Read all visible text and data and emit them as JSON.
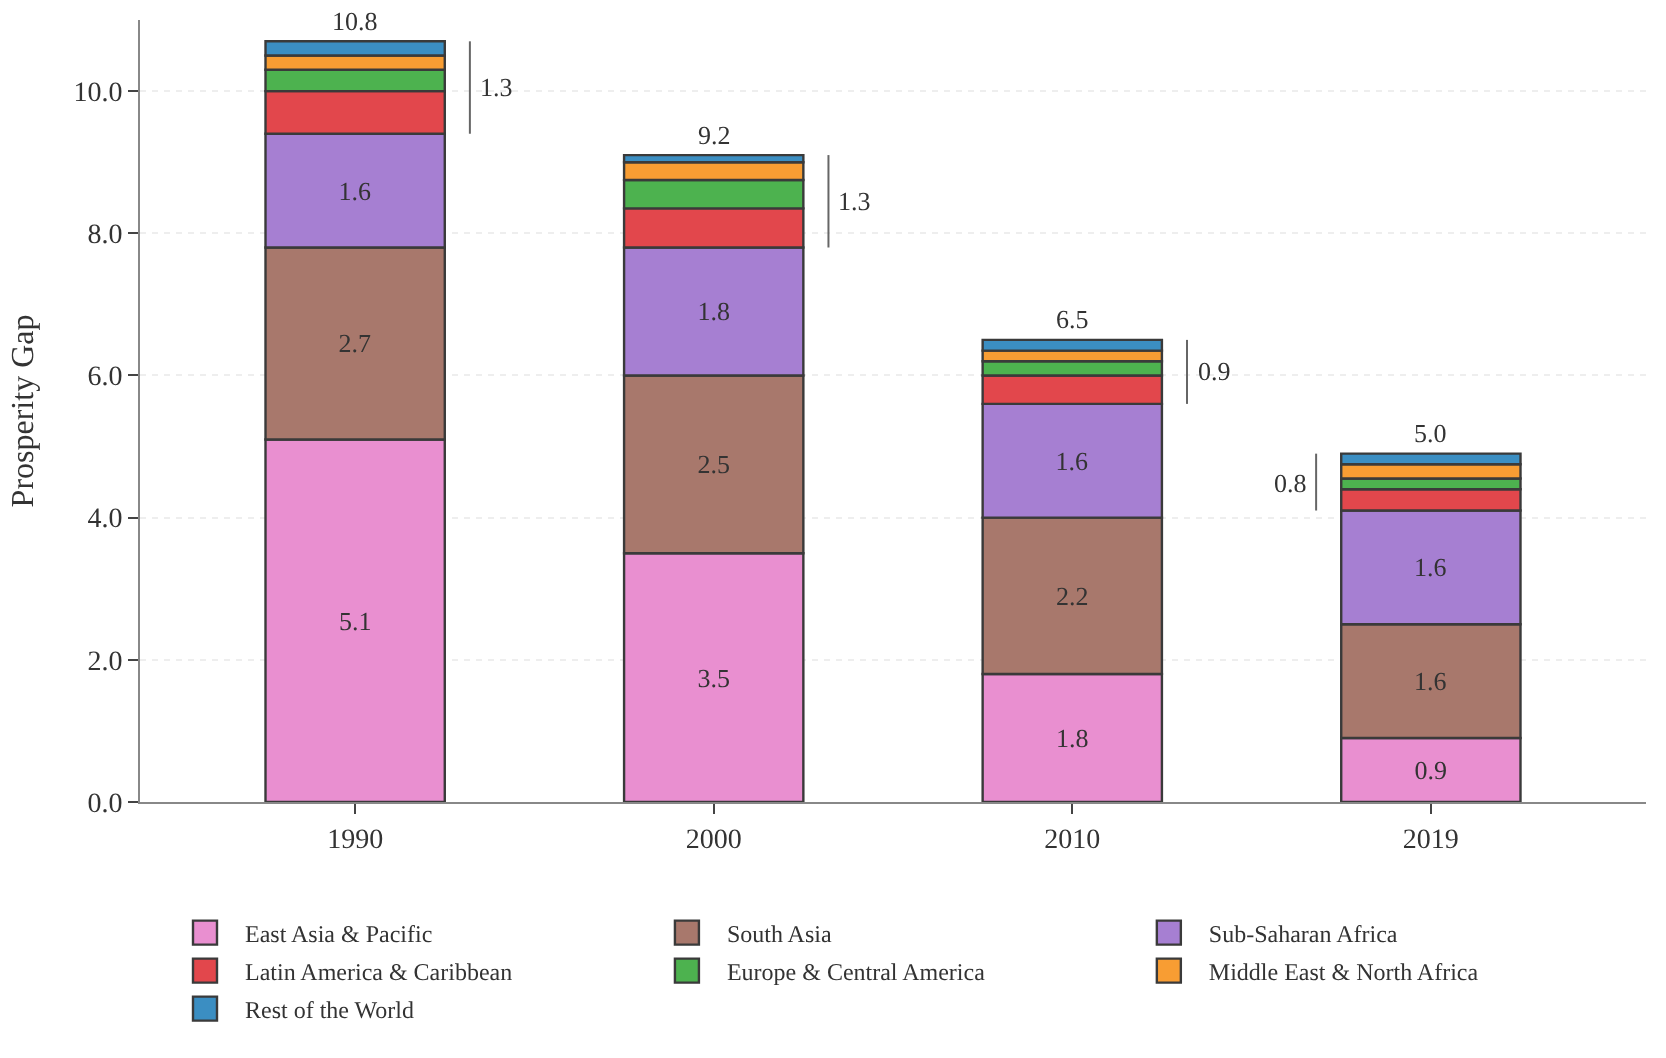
{
  "chart_data": {
    "type": "bar",
    "stacked": true,
    "ylabel": "Prosperity Gap",
    "categories": [
      "1990",
      "2000",
      "2010",
      "2019"
    ],
    "series": [
      {
        "name": "East Asia & Pacific",
        "color": "#e98fd0",
        "values": [
          5.1,
          3.5,
          1.8,
          0.9
        ],
        "value_labels": [
          "5.1",
          "3.5",
          "1.8",
          "0.9"
        ]
      },
      {
        "name": "South Asia",
        "color": "#a8786c",
        "values": [
          2.7,
          2.5,
          2.2,
          1.6
        ],
        "value_labels": [
          "2.7",
          "2.5",
          "2.2",
          "1.6"
        ]
      },
      {
        "name": "Sub-Saharan Africa",
        "color": "#a67fd2",
        "values": [
          1.6,
          1.8,
          1.6,
          1.6
        ],
        "value_labels": [
          "1.6",
          "1.8",
          "1.6",
          "1.6"
        ]
      },
      {
        "name": "Latin America & Caribbean",
        "color": "#e2474c",
        "values": [
          0.6,
          0.55,
          0.4,
          0.3
        ]
      },
      {
        "name": "Europe & Central America",
        "color": "#4db24f",
        "values": [
          0.3,
          0.4,
          0.2,
          0.15
        ]
      },
      {
        "name": "Middle East & North Africa",
        "color": "#f89d33",
        "values": [
          0.2,
          0.25,
          0.15,
          0.2
        ]
      },
      {
        "name": "Rest of the World",
        "color": "#3b8ec2",
        "values": [
          0.2,
          0.1,
          0.15,
          0.15
        ]
      }
    ],
    "totals": [
      "10.8",
      "9.2",
      "6.5",
      "5.0"
    ],
    "annotations": [
      "1.3",
      "1.3",
      "0.9",
      "0.8"
    ],
    "ylim": [
      0,
      11
    ],
    "yticks": [
      {
        "value": 0,
        "label": "0.0"
      },
      {
        "value": 2,
        "label": "2.0"
      },
      {
        "value": 4,
        "label": "4.0"
      },
      {
        "value": 6,
        "label": "6.0"
      },
      {
        "value": 8,
        "label": "8.0"
      },
      {
        "value": 10,
        "label": "10.0"
      }
    ],
    "grid": "y",
    "legend": "bottom"
  }
}
